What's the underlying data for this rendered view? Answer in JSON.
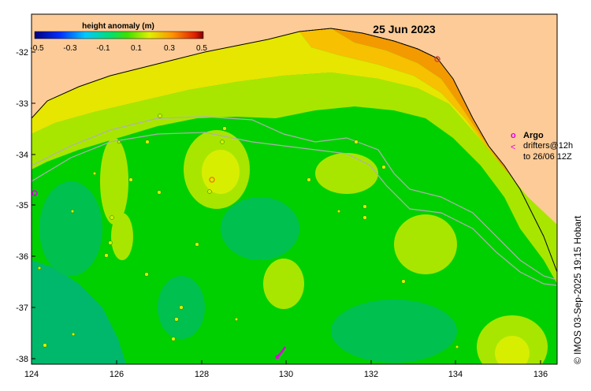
{
  "map": {
    "date": "25 Jun 2023",
    "credit": "© IMOS 03-Sep-2025 19:15 Hobart",
    "lat_ticks": [
      "-32",
      "-33",
      "-34",
      "-35",
      "-36",
      "-37",
      "-38"
    ],
    "lon_ticks": [
      "124",
      "126",
      "128",
      "130",
      "132",
      "134",
      "136"
    ],
    "colorbar": {
      "title": "height anomaly (m)",
      "labels": [
        "-0.5",
        "-0.3",
        "-0.1",
        "0.1",
        "0.3",
        "0.5"
      ]
    },
    "legend": {
      "argo_marker": "o",
      "argo_label": "Argo",
      "drifter_marker": "<",
      "drifter_label_1": "drifters@12h",
      "drifter_label_2": "to 26/06 12Z"
    },
    "colors": {
      "land": "#fccb98",
      "ocean_low": "#00b86b",
      "ocean_mid": "#00d400",
      "ocean_high": "#aaee00",
      "coast_high": "#f0a000",
      "marker": "#e000e0",
      "track": "#b0b0b0"
    }
  }
}
